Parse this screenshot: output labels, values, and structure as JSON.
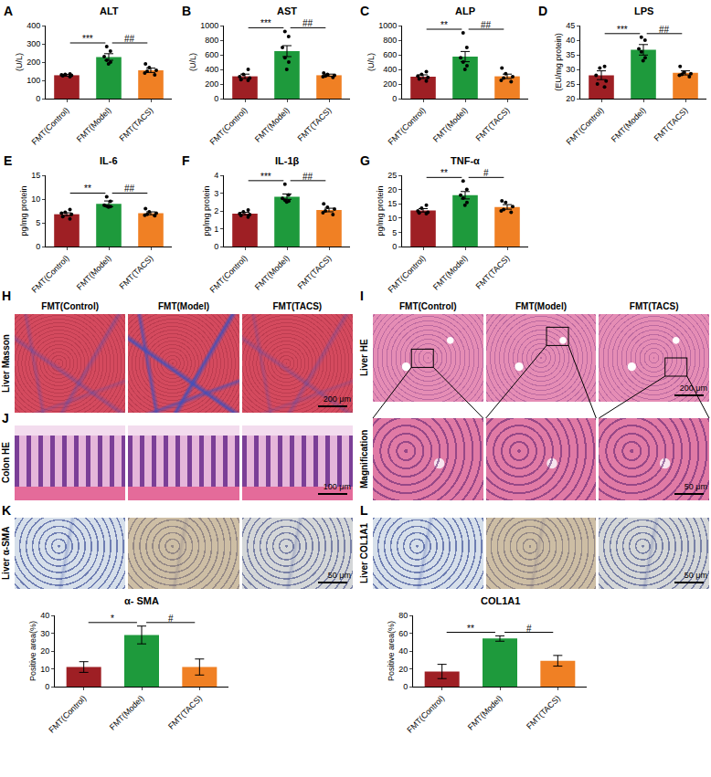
{
  "chart_data": [
    {
      "panel": "A",
      "type": "bar",
      "title": "ALT",
      "y_label": "(U/L)",
      "categories": [
        "FMT(Control)",
        "FMT(Model)",
        "FMT(TACS)"
      ],
      "values": [
        128,
        228,
        155
      ],
      "errors": [
        5,
        18,
        12
      ],
      "points": [
        [
          120,
          125,
          130,
          128,
          135,
          132
        ],
        [
          285,
          260,
          230,
          210,
          200,
          190
        ],
        [
          190,
          170,
          155,
          150,
          140,
          130
        ]
      ],
      "colors": [
        "#9e1f24",
        "#1e9a3c",
        "#f08024"
      ],
      "ylim": [
        0,
        400
      ],
      "yticks": [
        0,
        100,
        200,
        300,
        400
      ],
      "grid": false,
      "annotations": [
        {
          "from": 0,
          "to": 1,
          "text": "***"
        },
        {
          "from": 1,
          "to": 2,
          "text": "##"
        }
      ]
    },
    {
      "panel": "B",
      "type": "bar",
      "title": "AST",
      "y_label": "(U/L)",
      "categories": [
        "FMT(Control)",
        "FMT(Model)",
        "FMT(TACS)"
      ],
      "values": [
        305,
        650,
        320
      ],
      "errors": [
        30,
        75,
        15
      ],
      "points": [
        [
          400,
          330,
          300,
          280,
          260,
          250
        ],
        [
          920,
          850,
          700,
          560,
          500,
          400
        ],
        [
          350,
          330,
          320,
          310,
          300,
          290
        ]
      ],
      "colors": [
        "#9e1f24",
        "#1e9a3c",
        "#f08024"
      ],
      "ylim": [
        0,
        1000
      ],
      "yticks": [
        0,
        200,
        400,
        600,
        800,
        1000
      ],
      "grid": false,
      "annotations": [
        {
          "from": 0,
          "to": 1,
          "text": "***"
        },
        {
          "from": 1,
          "to": 2,
          "text": "##"
        }
      ]
    },
    {
      "panel": "C",
      "type": "bar",
      "title": "ALP",
      "y_label": "(U/L)",
      "categories": [
        "FMT(Control)",
        "FMT(Model)",
        "FMT(TACS)"
      ],
      "values": [
        300,
        575,
        305
      ],
      "errors": [
        25,
        70,
        30
      ],
      "points": [
        [
          370,
          330,
          310,
          290,
          270,
          240
        ],
        [
          900,
          700,
          560,
          500,
          450,
          400
        ],
        [
          420,
          340,
          300,
          280,
          250,
          230
        ]
      ],
      "colors": [
        "#9e1f24",
        "#1e9a3c",
        "#f08024"
      ],
      "ylim": [
        0,
        1000
      ],
      "yticks": [
        0,
        200,
        400,
        600,
        800,
        1000
      ],
      "grid": false,
      "annotations": [
        {
          "from": 0,
          "to": 1,
          "text": "**"
        },
        {
          "from": 1,
          "to": 2,
          "text": "##"
        }
      ]
    },
    {
      "panel": "D",
      "type": "bar",
      "title": "LPS",
      "y_label": "(EU/mg protein)",
      "categories": [
        "FMT(Control)",
        "FMT(Model)",
        "FMT(TACS)"
      ],
      "values": [
        28,
        36.7,
        28.8
      ],
      "errors": [
        1.5,
        1.8,
        0.7
      ],
      "points": [
        [
          31,
          30.5,
          28,
          26,
          25,
          24
        ],
        [
          41,
          40,
          37,
          36,
          33,
          34
        ],
        [
          31,
          29,
          28.5,
          28.3,
          28,
          27.5
        ]
      ],
      "colors": [
        "#9e1f24",
        "#1e9a3c",
        "#f08024"
      ],
      "ylim": [
        20,
        45
      ],
      "yticks": [
        20,
        25,
        30,
        35,
        40,
        45
      ],
      "grid": false,
      "annotations": [
        {
          "from": 0,
          "to": 1,
          "text": "***"
        },
        {
          "from": 1,
          "to": 2,
          "text": "##"
        }
      ]
    },
    {
      "panel": "E",
      "type": "bar",
      "title": "IL-6",
      "y_label": "pg/mg protein",
      "categories": [
        "FMT(Control)",
        "FMT(Model)",
        "FMT(TACS)"
      ],
      "values": [
        6.8,
        9,
        7
      ],
      "errors": [
        0.3,
        0.6,
        0.3
      ],
      "points": [
        [
          7.8,
          7.2,
          7,
          6.8,
          6.3,
          5.8
        ],
        [
          10.5,
          9.5,
          8.7,
          8.5,
          8.3,
          8.4
        ],
        [
          8,
          7.3,
          7,
          6.8,
          6.6,
          6.5
        ]
      ],
      "colors": [
        "#9e1f24",
        "#1e9a3c",
        "#f08024"
      ],
      "ylim": [
        0,
        15
      ],
      "yticks": [
        0,
        5,
        10,
        15
      ],
      "grid": false,
      "annotations": [
        {
          "from": 0,
          "to": 1,
          "text": "**"
        },
        {
          "from": 1,
          "to": 2,
          "text": "##"
        }
      ]
    },
    {
      "panel": "F",
      "type": "bar",
      "title": "IL-1β",
      "y_label": "pg/mg protein",
      "categories": [
        "FMT(Control)",
        "FMT(Model)",
        "FMT(TACS)"
      ],
      "values": [
        1.85,
        2.8,
        2.05
      ],
      "errors": [
        0.07,
        0.15,
        0.1
      ],
      "points": [
        [
          2.05,
          1.95,
          1.85,
          1.8,
          1.75,
          1.65
        ],
        [
          3.5,
          2.9,
          2.7,
          2.6,
          2.55,
          2.5
        ],
        [
          2.4,
          2.2,
          2.1,
          2.0,
          1.9,
          1.8
        ]
      ],
      "colors": [
        "#9e1f24",
        "#1e9a3c",
        "#f08024"
      ],
      "ylim": [
        0,
        4
      ],
      "yticks": [
        0,
        1,
        2,
        3,
        4
      ],
      "grid": false,
      "annotations": [
        {
          "from": 0,
          "to": 1,
          "text": "***"
        },
        {
          "from": 1,
          "to": 2,
          "text": "##"
        }
      ]
    },
    {
      "panel": "G",
      "type": "bar",
      "title": "TNF-α",
      "y_label": "pg/mg protein",
      "categories": [
        "FMT(Control)",
        "FMT(Model)",
        "FMT(TACS)"
      ],
      "values": [
        12.7,
        18,
        13.9
      ],
      "errors": [
        0.6,
        1.3,
        0.8
      ],
      "points": [
        [
          14.5,
          13.5,
          12.5,
          12,
          11.8,
          11.5
        ],
        [
          23,
          20,
          18,
          17,
          15.5,
          14.5
        ],
        [
          16,
          15.5,
          14,
          13,
          12.5,
          12
        ]
      ],
      "colors": [
        "#9e1f24",
        "#1e9a3c",
        "#f08024"
      ],
      "ylim": [
        0,
        25
      ],
      "yticks": [
        0,
        5,
        10,
        15,
        20,
        25
      ],
      "grid": false,
      "annotations": [
        {
          "from": 0,
          "to": 1,
          "text": "**"
        },
        {
          "from": 1,
          "to": 2,
          "text": "#"
        }
      ]
    },
    {
      "type": "bar",
      "title": "α- SMA",
      "y_label": "Positive area(%)",
      "categories": [
        "FMT(Control)",
        "FMT(Model)",
        "FMT(TACS)"
      ],
      "values": [
        11,
        29,
        11
      ],
      "errors": [
        3,
        5,
        4.5
      ],
      "colors": [
        "#9e1f24",
        "#1e9a3c",
        "#f08024"
      ],
      "ylim": [
        0,
        40
      ],
      "yticks": [
        0,
        10,
        20,
        30,
        40
      ],
      "grid": false,
      "annotations": [
        {
          "from": 0,
          "to": 1,
          "text": "*"
        },
        {
          "from": 1,
          "to": 2,
          "text": "#"
        }
      ]
    },
    {
      "type": "bar",
      "title": "COL1A1",
      "y_label": "Positive area(%)",
      "categories": [
        "FMT(Control)",
        "FMT(Model)",
        "FMT(TACS)"
      ],
      "values": [
        17,
        54,
        29
      ],
      "errors": [
        8,
        3,
        6
      ],
      "colors": [
        "#9e1f24",
        "#1e9a3c",
        "#f08024"
      ],
      "ylim": [
        0,
        80
      ],
      "yticks": [
        0,
        20,
        40,
        60,
        80
      ],
      "grid": false,
      "annotations": [
        {
          "from": 0,
          "to": 1,
          "text": "**"
        },
        {
          "from": 1,
          "to": 2,
          "text": "#"
        }
      ]
    }
  ],
  "image_panels": [
    {
      "panel": "H",
      "columns": [
        "FMT(Control)",
        "FMT(Model)",
        "FMT(TACS)"
      ],
      "rows": [
        {
          "label": "Liver Masson",
          "scale_bar": "200 μm"
        }
      ]
    },
    {
      "panel": "I",
      "columns": [
        "FMT(Control)",
        "FMT(Model)",
        "FMT(TACS)"
      ],
      "rows": [
        {
          "label": "Liver HE",
          "scale_bar": "200 μm"
        },
        {
          "label": "Magnification",
          "scale_bar": "50 μm"
        }
      ]
    },
    {
      "panel": "J",
      "rows": [
        {
          "label": "Colon HE",
          "scale_bar": "100 μm"
        }
      ]
    },
    {
      "panel": "K",
      "rows": [
        {
          "label": "Liver α-SMA",
          "scale_bar": "50 μm"
        }
      ]
    },
    {
      "panel": "L",
      "rows": [
        {
          "label": "Liver COL1A1",
          "scale_bar": "50 μm"
        }
      ]
    }
  ]
}
